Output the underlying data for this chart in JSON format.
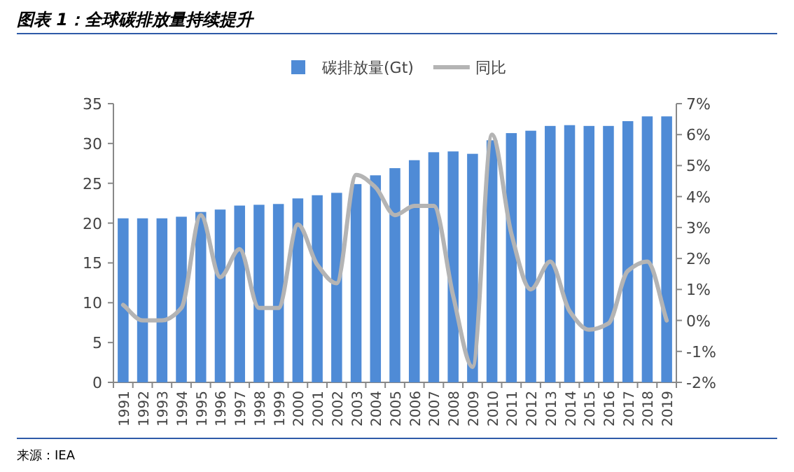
{
  "chart_data": {
    "type": "bar",
    "title": "图表 1：全球碳排放量持续提升",
    "categories": [
      "1991",
      "1992",
      "1993",
      "1994",
      "1995",
      "1996",
      "1997",
      "1998",
      "1999",
      "2000",
      "2001",
      "2002",
      "2003",
      "2004",
      "2005",
      "2006",
      "2007",
      "2008",
      "2009",
      "2010",
      "2011",
      "2012",
      "2013",
      "2014",
      "2015",
      "2016",
      "2017",
      "2018",
      "2019"
    ],
    "series": [
      {
        "name": "碳排放量(Gt)",
        "color": "#4f8bd6",
        "values": [
          20.6,
          20.6,
          20.6,
          20.8,
          21.4,
          21.7,
          22.2,
          22.3,
          22.4,
          23.1,
          23.5,
          23.8,
          24.9,
          26.0,
          26.9,
          27.9,
          28.9,
          29.0,
          28.7,
          30.4,
          31.3,
          31.6,
          32.2,
          32.3,
          32.2,
          32.2,
          32.8,
          33.4,
          33.4
        ]
      },
      {
        "name": "同比",
        "type": "line",
        "axis": "y2",
        "color": "#b4b4b4",
        "values": [
          0.5,
          0.0,
          0.0,
          0.4,
          3.4,
          1.4,
          2.3,
          0.4,
          0.4,
          3.1,
          1.8,
          1.2,
          4.7,
          4.3,
          3.4,
          3.7,
          3.7,
          0.8,
          -1.5,
          6.0,
          2.8,
          1.0,
          1.9,
          0.3,
          -0.3,
          -0.1,
          1.6,
          1.9,
          0.0
        ]
      }
    ],
    "ylim": [
      0,
      35
    ],
    "yticks": [
      0,
      5,
      10,
      15,
      20,
      25,
      30,
      35
    ],
    "y2lim": [
      -2,
      7
    ],
    "y2ticks": [
      {
        "value": -2,
        "label": "-2%"
      },
      {
        "value": -1,
        "label": "-1%"
      },
      {
        "value": 0,
        "label": "0%"
      },
      {
        "value": 1,
        "label": "1%"
      },
      {
        "value": 2,
        "label": "2%"
      },
      {
        "value": 3,
        "label": "3%"
      },
      {
        "value": 4,
        "label": "4%"
      },
      {
        "value": 5,
        "label": "5%"
      },
      {
        "value": 6,
        "label": "6%"
      },
      {
        "value": 7,
        "label": "7%"
      }
    ],
    "legend": "top",
    "grid": false,
    "annotations": [
      "来源：IEA"
    ]
  }
}
